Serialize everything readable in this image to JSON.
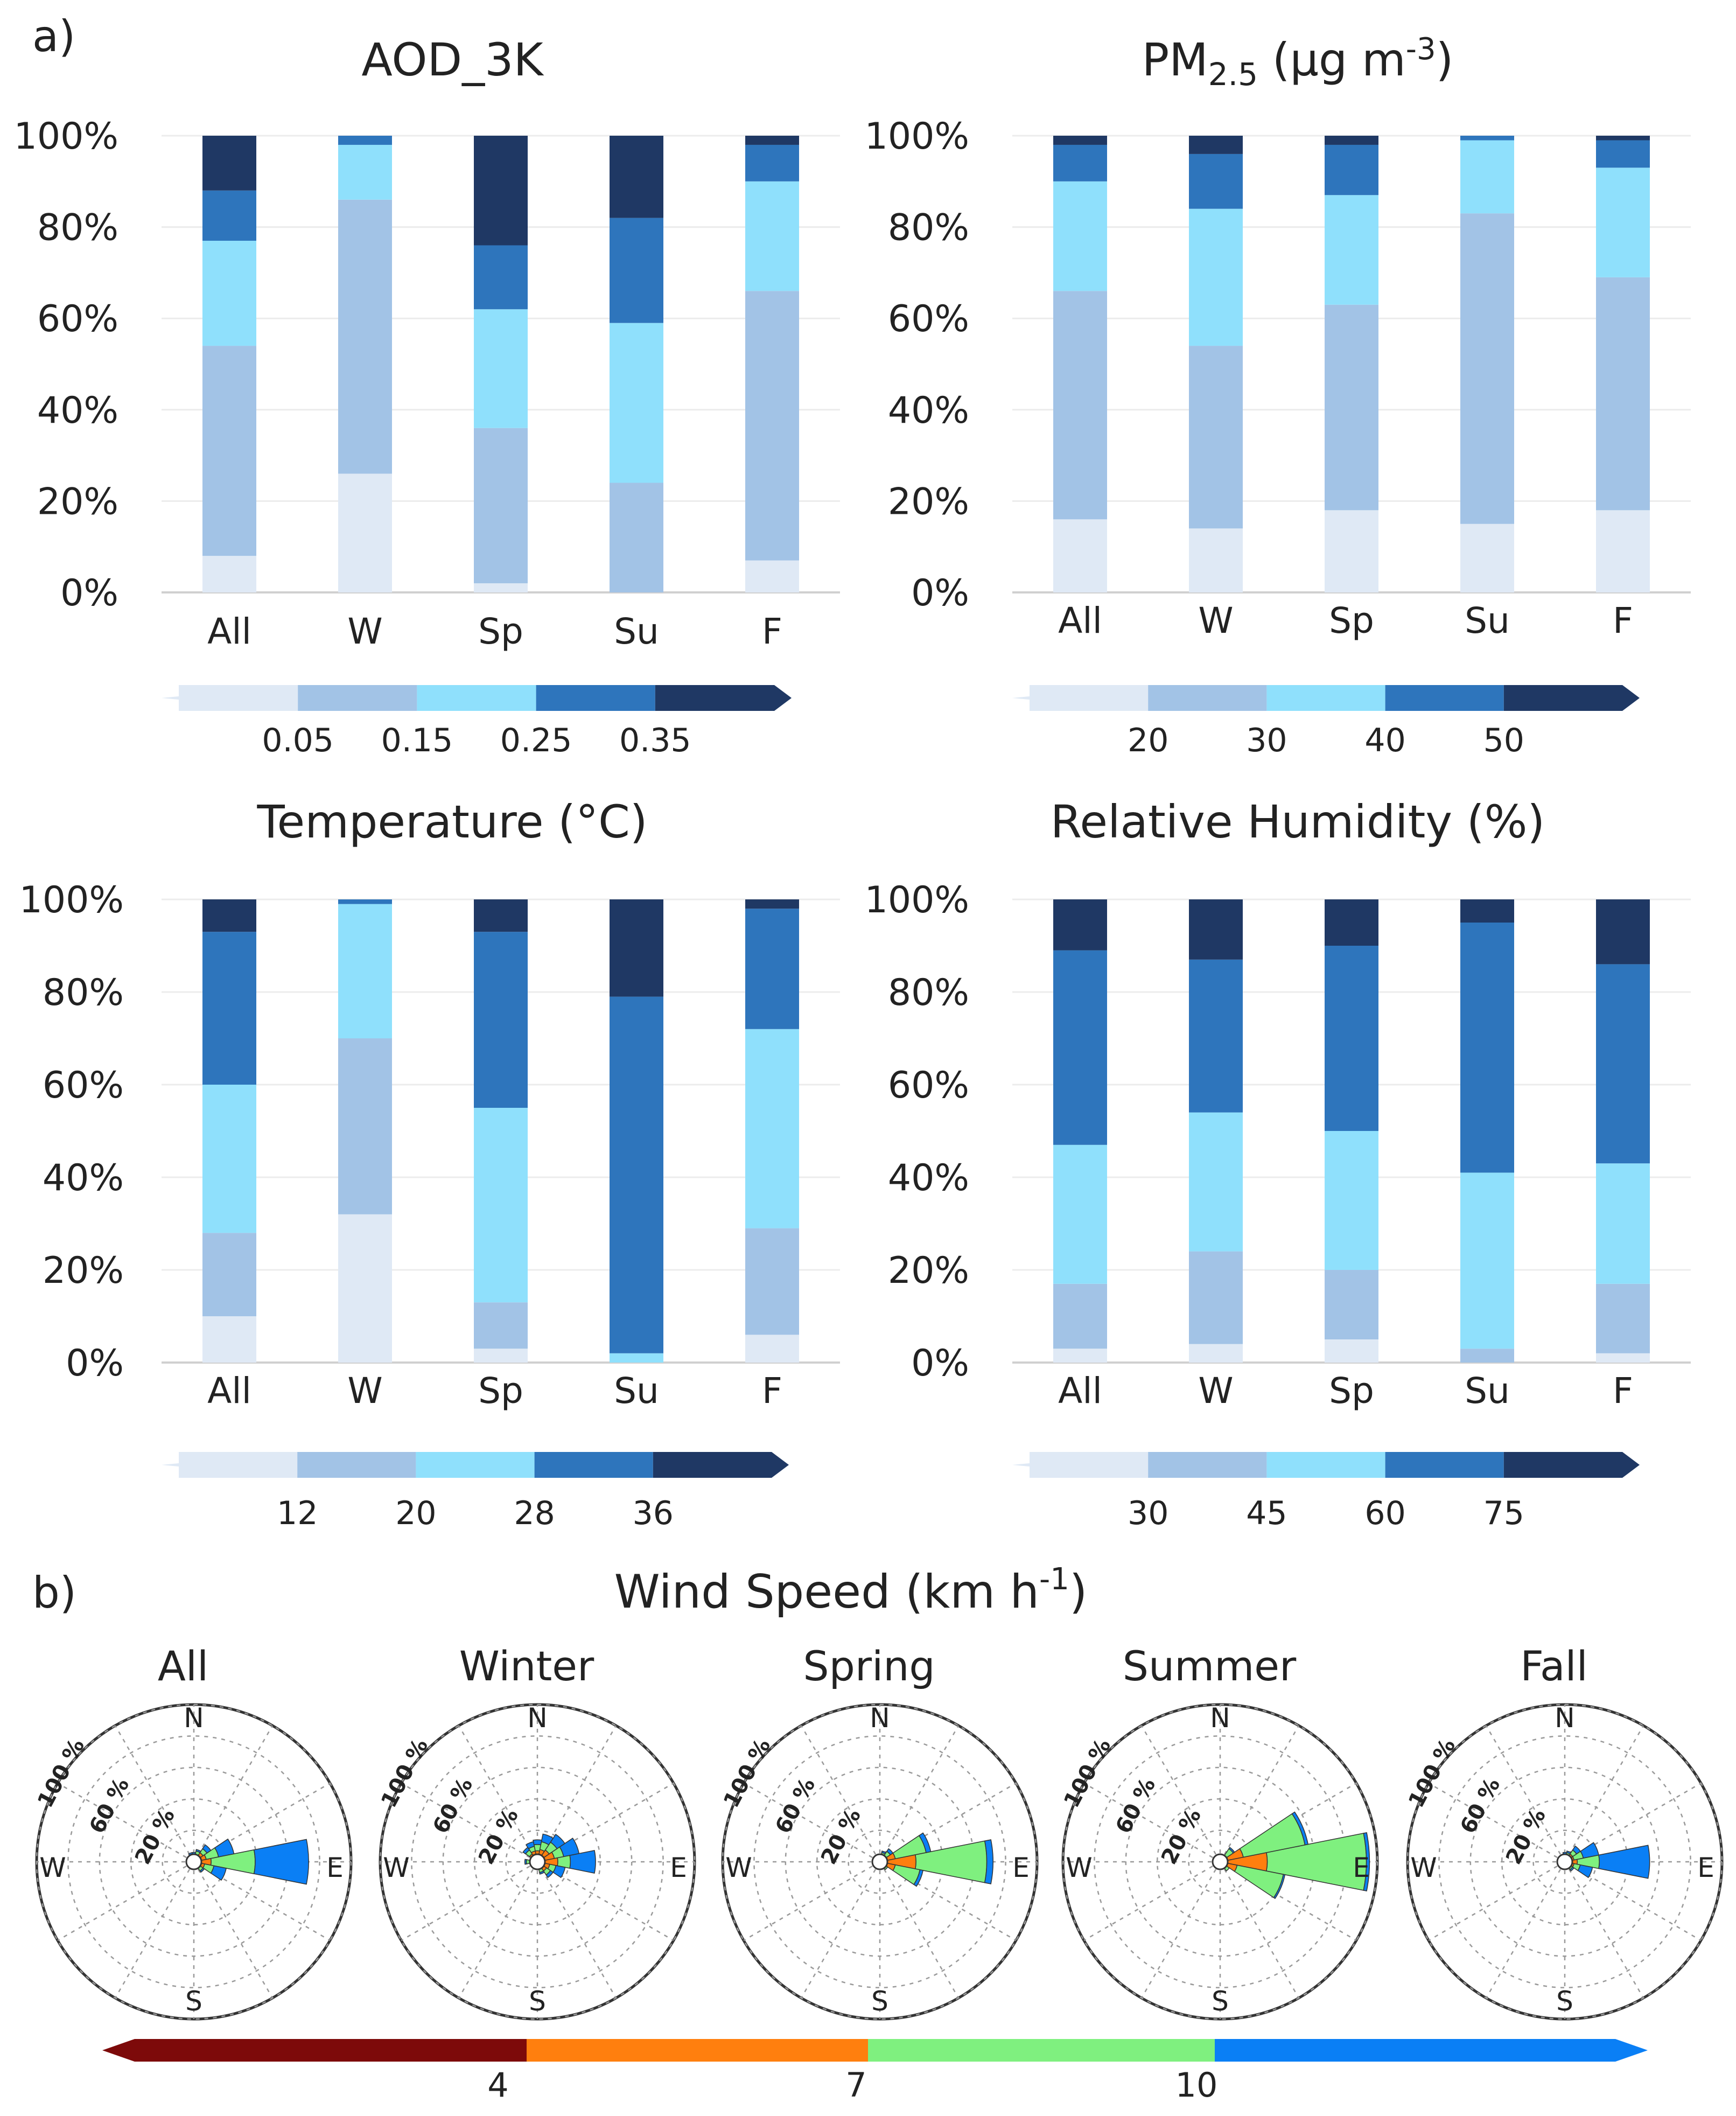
{
  "panel_labels": {
    "a": "a)",
    "b": "b)"
  },
  "colors": {
    "ramp": [
      "#dfe9f5",
      "#a2c3e6",
      "#8fe0fc",
      "#2e75bc",
      "#1f3864"
    ],
    "wind": [
      "#7d0a0a",
      "#ff7f0e",
      "#7ff07f",
      "#0a7ff5"
    ]
  },
  "chart_data": [
    {
      "type": "bar",
      "stacked": true,
      "title": "AOD_3K",
      "categories": [
        "All",
        "W",
        "Sp",
        "Su",
        "F"
      ],
      "yticks": [
        "0%",
        "20%",
        "40%",
        "60%",
        "80%",
        "100%"
      ],
      "ylim": [
        0,
        100
      ],
      "series": [
        {
          "name": "< 0.05",
          "values": [
            8,
            26,
            2,
            0,
            7
          ]
        },
        {
          "name": "0.05–0.15",
          "values": [
            46,
            60,
            34,
            24,
            59
          ]
        },
        {
          "name": "0.15–0.25",
          "values": [
            23,
            12,
            26,
            35,
            24
          ]
        },
        {
          "name": "0.25–0.35",
          "values": [
            11,
            2,
            14,
            23,
            8
          ]
        },
        {
          "name": "> 0.35",
          "values": [
            12,
            0,
            24,
            18,
            2
          ]
        }
      ],
      "colorbar_ticks": [
        "0.05",
        "0.15",
        "0.25",
        "0.35"
      ]
    },
    {
      "type": "bar",
      "stacked": true,
      "title": "PM",
      "title_sub": "2.5",
      "title_tail": " (μg m",
      "title_sup": "-3",
      "title_end": ")",
      "categories": [
        "All",
        "W",
        "Sp",
        "Su",
        "F"
      ],
      "yticks": [
        "0%",
        "20%",
        "40%",
        "60%",
        "80%",
        "100%"
      ],
      "ylim": [
        0,
        100
      ],
      "series": [
        {
          "name": "< 20",
          "values": [
            16,
            14,
            18,
            15,
            18
          ]
        },
        {
          "name": "20–30",
          "values": [
            50,
            40,
            45,
            68,
            51
          ]
        },
        {
          "name": "30–40",
          "values": [
            24,
            30,
            24,
            16,
            24
          ]
        },
        {
          "name": "40–50",
          "values": [
            8,
            12,
            11,
            1,
            6
          ]
        },
        {
          "name": "> 50",
          "values": [
            2,
            4,
            2,
            0,
            1
          ]
        }
      ],
      "colorbar_ticks": [
        "20",
        "30",
        "40",
        "50"
      ]
    },
    {
      "type": "bar",
      "stacked": true,
      "title": "Temperature (°C)",
      "categories": [
        "All",
        "W",
        "Sp",
        "Su",
        "F"
      ],
      "yticks": [
        "0%",
        "20%",
        "40%",
        "60%",
        "80%",
        "100%"
      ],
      "ylim": [
        0,
        100
      ],
      "series": [
        {
          "name": "< 12",
          "values": [
            10,
            32,
            3,
            0,
            6
          ]
        },
        {
          "name": "12–20",
          "values": [
            18,
            38,
            10,
            0,
            23
          ]
        },
        {
          "name": "20–28",
          "values": [
            32,
            29,
            42,
            2,
            43
          ]
        },
        {
          "name": "28–36",
          "values": [
            33,
            1,
            38,
            77,
            26
          ]
        },
        {
          "name": "> 36",
          "values": [
            7,
            0,
            7,
            21,
            2
          ]
        }
      ],
      "colorbar_ticks": [
        "12",
        "20",
        "28",
        "36"
      ]
    },
    {
      "type": "bar",
      "stacked": true,
      "title": "Relative Humidity (%)",
      "categories": [
        "All",
        "W",
        "Sp",
        "Su",
        "F"
      ],
      "yticks": [
        "0%",
        "20%",
        "40%",
        "60%",
        "80%",
        "100%"
      ],
      "ylim": [
        0,
        100
      ],
      "series": [
        {
          "name": "< 30",
          "values": [
            3,
            4,
            5,
            0,
            2
          ]
        },
        {
          "name": "30–45",
          "values": [
            14,
            20,
            15,
            3,
            15
          ]
        },
        {
          "name": "45–60",
          "values": [
            30,
            30,
            30,
            38,
            26
          ]
        },
        {
          "name": "60–75",
          "values": [
            42,
            33,
            40,
            54,
            43
          ]
        },
        {
          "name": "> 75",
          "values": [
            11,
            13,
            10,
            5,
            14
          ]
        }
      ],
      "colorbar_ticks": [
        "30",
        "45",
        "60",
        "75"
      ]
    },
    {
      "type": "windrose",
      "title": "Wind Speed (km h",
      "title_sup": "-1",
      "title_end": ")",
      "directions": [
        "N",
        "E",
        "S",
        "W"
      ],
      "rings": [
        "20 %",
        "60 %",
        "100 %"
      ],
      "speed_bins": [
        "< 4",
        "4–7",
        "7–10",
        "> 10"
      ],
      "colorbar_ticks": [
        "4",
        "7",
        "10"
      ],
      "roses": [
        {
          "name": "All",
          "petals": [
            {
              "dir": 90,
              "pct": [
                2,
                9,
                28,
                34
              ]
            },
            {
              "dir": 67.5,
              "pct": [
                2,
                6,
                8,
                10
              ]
            },
            {
              "dir": 112.5,
              "pct": [
                2,
                5,
                6,
                8
              ]
            },
            {
              "dir": 45,
              "pct": [
                2,
                5,
                3,
                3
              ]
            },
            {
              "dir": 22.5,
              "pct": [
                1,
                4,
                2,
                1
              ]
            },
            {
              "dir": 0,
              "pct": [
                1,
                3,
                1,
                1
              ]
            },
            {
              "dir": 337.5,
              "pct": [
                1,
                3,
                1,
                1
              ]
            },
            {
              "dir": 135,
              "pct": [
                1,
                4,
                2,
                1
              ]
            },
            {
              "dir": 157.5,
              "pct": [
                1,
                2,
                1,
                0
              ]
            },
            {
              "dir": 270,
              "pct": [
                1,
                2,
                0,
                0
              ]
            }
          ]
        },
        {
          "name": "Winter",
          "petals": [
            {
              "dir": 90,
              "pct": [
                3,
                10,
                8,
                16
              ]
            },
            {
              "dir": 67.5,
              "pct": [
                3,
                8,
                6,
                10
              ]
            },
            {
              "dir": 112.5,
              "pct": [
                2,
                6,
                4,
                6
              ]
            },
            {
              "dir": 45,
              "pct": [
                3,
                6,
                6,
                6
              ]
            },
            {
              "dir": 22.5,
              "pct": [
                2,
                6,
                5,
                5
              ]
            },
            {
              "dir": 0,
              "pct": [
                2,
                5,
                4,
                3
              ]
            },
            {
              "dir": 337.5,
              "pct": [
                2,
                5,
                3,
                3
              ]
            },
            {
              "dir": 315,
              "pct": [
                2,
                4,
                3,
                2
              ]
            },
            {
              "dir": 135,
              "pct": [
                2,
                5,
                3,
                2
              ]
            },
            {
              "dir": 157.5,
              "pct": [
                2,
                3,
                2,
                1
              ]
            },
            {
              "dir": 270,
              "pct": [
                2,
                3,
                2,
                1
              ]
            }
          ]
        },
        {
          "name": "Spring",
          "petals": [
            {
              "dir": 90,
              "pct": [
                3,
                20,
                45,
                4
              ]
            },
            {
              "dir": 67.5,
              "pct": [
                2,
                8,
                20,
                3
              ]
            },
            {
              "dir": 112.5,
              "pct": [
                2,
                8,
                16,
                2
              ]
            },
            {
              "dir": 45,
              "pct": [
                1,
                3,
                4,
                2
              ]
            },
            {
              "dir": 22.5,
              "pct": [
                1,
                3,
                2,
                1
              ]
            },
            {
              "dir": 0,
              "pct": [
                1,
                2,
                1,
                0
              ]
            },
            {
              "dir": 135,
              "pct": [
                1,
                3,
                2,
                0
              ]
            },
            {
              "dir": 270,
              "pct": [
                1,
                2,
                0,
                0
              ]
            }
          ]
        },
        {
          "name": "Summer",
          "petals": [
            {
              "dir": 90,
              "pct": [
                2,
                28,
                63,
                2
              ]
            },
            {
              "dir": 67.5,
              "pct": [
                1,
                14,
                40,
                2
              ]
            },
            {
              "dir": 112.5,
              "pct": [
                1,
                10,
                30,
                1
              ]
            },
            {
              "dir": 45,
              "pct": [
                1,
                3,
                6,
                1
              ]
            },
            {
              "dir": 135,
              "pct": [
                1,
                3,
                3,
                0
              ]
            },
            {
              "dir": 0,
              "pct": [
                1,
                1,
                1,
                0
              ]
            },
            {
              "dir": 270,
              "pct": [
                1,
                1,
                0,
                0
              ]
            }
          ]
        },
        {
          "name": "Fall",
          "petals": [
            {
              "dir": 90,
              "pct": [
                2,
                6,
                14,
                32
              ]
            },
            {
              "dir": 67.5,
              "pct": [
                2,
                4,
                6,
                10
              ]
            },
            {
              "dir": 112.5,
              "pct": [
                2,
                4,
                4,
                8
              ]
            },
            {
              "dir": 45,
              "pct": [
                2,
                4,
                3,
                3
              ]
            },
            {
              "dir": 22.5,
              "pct": [
                1,
                3,
                2,
                1
              ]
            },
            {
              "dir": 0,
              "pct": [
                1,
                3,
                1,
                1
              ]
            },
            {
              "dir": 135,
              "pct": [
                1,
                3,
                2,
                1
              ]
            },
            {
              "dir": 337.5,
              "pct": [
                1,
                2,
                1,
                0
              ]
            },
            {
              "dir": 270,
              "pct": [
                1,
                2,
                0,
                0
              ]
            }
          ]
        }
      ]
    }
  ]
}
